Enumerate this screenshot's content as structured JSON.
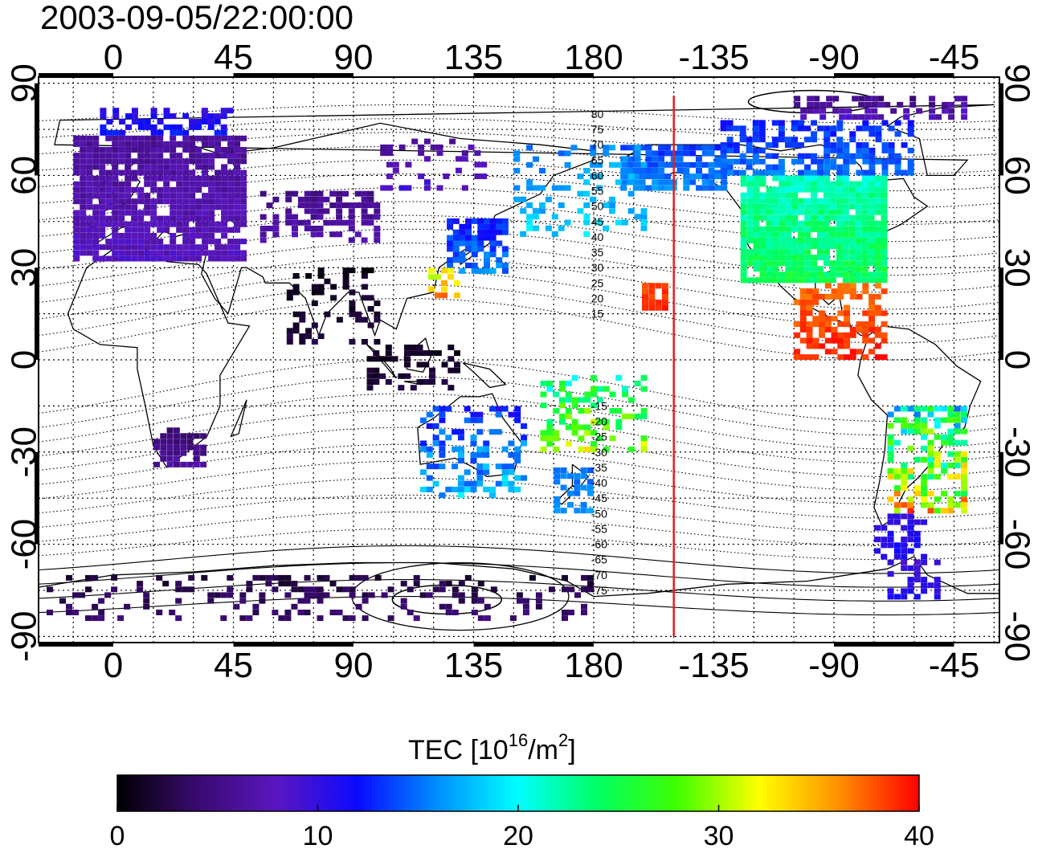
{
  "map": {
    "title": "2003-09-05/22:00:00",
    "x_ticks": [
      {
        "lon": 0,
        "label": "0"
      },
      {
        "lon": 45,
        "label": "45"
      },
      {
        "lon": 90,
        "label": "90"
      },
      {
        "lon": 135,
        "label": "135"
      },
      {
        "lon": 180,
        "label": "180"
      },
      {
        "lon": 225,
        "label": "-135"
      },
      {
        "lon": 270,
        "label": "-90"
      },
      {
        "lon": 315,
        "label": "-45"
      }
    ],
    "y_ticks": [
      {
        "lat": 90,
        "label": "90"
      },
      {
        "lat": 60,
        "label": "60"
      },
      {
        "lat": 30,
        "label": "30"
      },
      {
        "lat": 0,
        "label": "0"
      },
      {
        "lat": -30,
        "label": "-30"
      },
      {
        "lat": -60,
        "label": "-60"
      },
      {
        "lat": -90,
        "label": "-90"
      }
    ],
    "lon_range": [
      -28,
      332
    ],
    "lat_range": [
      -92,
      92
    ],
    "grid": true,
    "terminator_lon": 210,
    "terminator_color": "#e02020",
    "contour_labels": [
      {
        "lat": 80,
        "label": "80"
      },
      {
        "lat": 75,
        "label": "75"
      },
      {
        "lat": 70,
        "label": "70"
      },
      {
        "lat": 65,
        "label": "65"
      },
      {
        "lat": 60,
        "label": "60"
      },
      {
        "lat": 55,
        "label": "55"
      },
      {
        "lat": 50,
        "label": "50"
      },
      {
        "lat": 45,
        "label": "45"
      },
      {
        "lat": 40,
        "label": "40"
      },
      {
        "lat": 35,
        "label": "35"
      },
      {
        "lat": 30,
        "label": "30"
      },
      {
        "lat": 25,
        "label": "25"
      },
      {
        "lat": 20,
        "label": "20"
      },
      {
        "lat": 15,
        "label": "15"
      },
      {
        "lat": -15,
        "label": "-15"
      },
      {
        "lat": -20,
        "label": "-20"
      },
      {
        "lat": -25,
        "label": "-25"
      },
      {
        "lat": -30,
        "label": "-30"
      },
      {
        "lat": -35,
        "label": "-35"
      },
      {
        "lat": -40,
        "label": "-40"
      },
      {
        "lat": -45,
        "label": "-45"
      },
      {
        "lat": -50,
        "label": "-50"
      },
      {
        "lat": -55,
        "label": "-55"
      },
      {
        "lat": -60,
        "label": "-60"
      },
      {
        "lat": -65,
        "label": "-65"
      },
      {
        "lat": -70,
        "label": "-70"
      },
      {
        "lat": -75,
        "label": "-75"
      }
    ],
    "tec_regions": [
      {
        "name": "europe",
        "lon": [
          -15,
          50
        ],
        "lat": [
          32,
          73
        ],
        "tec": [
          5,
          9
        ],
        "density": 0.85
      },
      {
        "name": "scandinavia-north",
        "lon": [
          -5,
          45
        ],
        "lat": [
          73,
          82
        ],
        "tec": [
          9,
          13
        ],
        "density": 0.5
      },
      {
        "name": "north-america",
        "lon": [
          235,
          290
        ],
        "lat": [
          25,
          60
        ],
        "tec": [
          20,
          26
        ],
        "density": 0.9
      },
      {
        "name": "canada-north",
        "lon": [
          225,
          300
        ],
        "lat": [
          60,
          78
        ],
        "tec": [
          11,
          16
        ],
        "density": 0.6
      },
      {
        "name": "arctic-cap",
        "lon": [
          255,
          320
        ],
        "lat": [
          78,
          86
        ],
        "tec": [
          3,
          9
        ],
        "density": 0.6
      },
      {
        "name": "alaska",
        "lon": [
          190,
          230
        ],
        "lat": [
          55,
          70
        ],
        "tec": [
          12,
          17
        ],
        "density": 0.7
      },
      {
        "name": "central-america",
        "lon": [
          255,
          290
        ],
        "lat": [
          0,
          25
        ],
        "tec": [
          36,
          40
        ],
        "density": 0.55
      },
      {
        "name": "hawaii",
        "lon": [
          198,
          208
        ],
        "lat": [
          16,
          25
        ],
        "tec": [
          37,
          40
        ],
        "density": 0.9
      },
      {
        "name": "japan",
        "lon": [
          125,
          148
        ],
        "lat": [
          28,
          46
        ],
        "tec": [
          10,
          17
        ],
        "density": 0.7
      },
      {
        "name": "taiwan",
        "lon": [
          118,
          130
        ],
        "lat": [
          20,
          30
        ],
        "tec": [
          28,
          38
        ],
        "density": 0.6
      },
      {
        "name": "asia-central",
        "lon": [
          55,
          100
        ],
        "lat": [
          38,
          55
        ],
        "tec": [
          4,
          8
        ],
        "density": 0.45
      },
      {
        "name": "india-night",
        "lon": [
          65,
          100
        ],
        "lat": [
          5,
          30
        ],
        "tec": [
          0,
          3
        ],
        "density": 0.25
      },
      {
        "name": "indonesia",
        "lon": [
          95,
          130
        ],
        "lat": [
          -10,
          5
        ],
        "tec": [
          0,
          3
        ],
        "density": 0.35
      },
      {
        "name": "pacific-sw",
        "lon": [
          160,
          200
        ],
        "lat": [
          -30,
          -5
        ],
        "tec": [
          18,
          34
        ],
        "density": 0.35
      },
      {
        "name": "australia",
        "lon": [
          115,
          155
        ],
        "lat": [
          -45,
          -15
        ],
        "tec": [
          10,
          20
        ],
        "density": 0.4
      },
      {
        "name": "new-zealand",
        "lon": [
          165,
          180
        ],
        "lat": [
          -50,
          -35
        ],
        "tec": [
          14,
          17
        ],
        "density": 0.6
      },
      {
        "name": "south-africa",
        "lon": [
          15,
          35
        ],
        "lat": [
          -35,
          -22
        ],
        "tec": [
          3,
          7
        ],
        "density": 0.7
      },
      {
        "name": "south-america-east",
        "lon": [
          290,
          320
        ],
        "lat": [
          -50,
          -15
        ],
        "tec": [
          13,
          40
        ],
        "density": 0.55
      },
      {
        "name": "south-america-tip",
        "lon": [
          285,
          305
        ],
        "lat": [
          -65,
          -50
        ],
        "tec": [
          9,
          12
        ],
        "density": 0.5
      },
      {
        "name": "antarctica",
        "lon": [
          -25,
          180
        ],
        "lat": [
          -85,
          -70
        ],
        "tec": [
          1,
          5
        ],
        "density": 0.25
      },
      {
        "name": "antarctica-pen",
        "lon": [
          290,
          310
        ],
        "lat": [
          -78,
          -65
        ],
        "tec": [
          8,
          12
        ],
        "density": 0.4
      },
      {
        "name": "mongolia-siberia",
        "lon": [
          100,
          140
        ],
        "lat": [
          55,
          72
        ],
        "tec": [
          5,
          10
        ],
        "density": 0.2
      },
      {
        "name": "pacific-north",
        "lon": [
          150,
          200
        ],
        "lat": [
          40,
          70
        ],
        "tec": [
          14,
          20
        ],
        "density": 0.25
      }
    ]
  },
  "colorbar": {
    "label_main": "TEC  [10",
    "label_exp": "16",
    "label_mid": "/m",
    "label_exp2": "2",
    "label_end": "]",
    "min": 0,
    "max": 40,
    "ticks": [
      {
        "value": 0,
        "label": "0"
      },
      {
        "value": 10,
        "label": "10"
      },
      {
        "value": 20,
        "label": "20"
      },
      {
        "value": 30,
        "label": "30"
      },
      {
        "value": 40,
        "label": "40"
      }
    ],
    "colormap": [
      "#000000",
      "#3a0a70",
      "#5a16c0",
      "#0a0aff",
      "#0090ff",
      "#00ffff",
      "#00ff60",
      "#40ff00",
      "#ffff00",
      "#ff9000",
      "#ff0000"
    ]
  }
}
